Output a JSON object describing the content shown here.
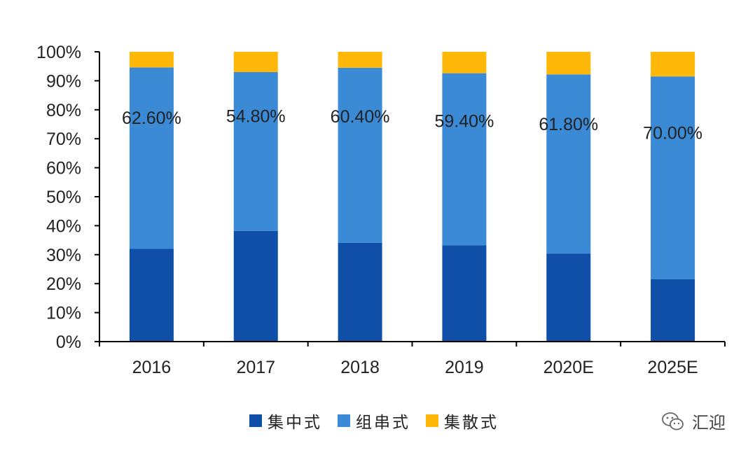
{
  "chart_data": {
    "type": "bar",
    "stacked": true,
    "normalized": true,
    "categories": [
      "2016",
      "2017",
      "2018",
      "2019",
      "2020E",
      "2025E"
    ],
    "series": [
      {
        "name": "集中式",
        "color": "#0F4FA8",
        "values": [
          32.0,
          38.2,
          34.1,
          33.2,
          30.4,
          21.5
        ]
      },
      {
        "name": "组串式",
        "color": "#3A8AD6",
        "values": [
          62.6,
          54.8,
          60.4,
          59.4,
          61.8,
          70.0
        ]
      },
      {
        "name": "集散式",
        "color": "#FFB80A",
        "values": [
          5.4,
          7.0,
          5.5,
          7.4,
          7.8,
          8.5
        ]
      }
    ],
    "data_labels": [
      "62.60%",
      "54.80%",
      "60.40%",
      "59.40%",
      "61.80%",
      "70.00%"
    ],
    "y_ticks": [
      "0%",
      "10%",
      "20%",
      "30%",
      "40%",
      "50%",
      "60%",
      "70%",
      "80%",
      "90%",
      "100%"
    ],
    "ylim": [
      0,
      100
    ],
    "title": "",
    "xlabel": "",
    "ylabel": "",
    "legend_position": "bottom",
    "grid": false
  },
  "watermark": {
    "icon": "wechat-icon",
    "text": "汇迎"
  }
}
